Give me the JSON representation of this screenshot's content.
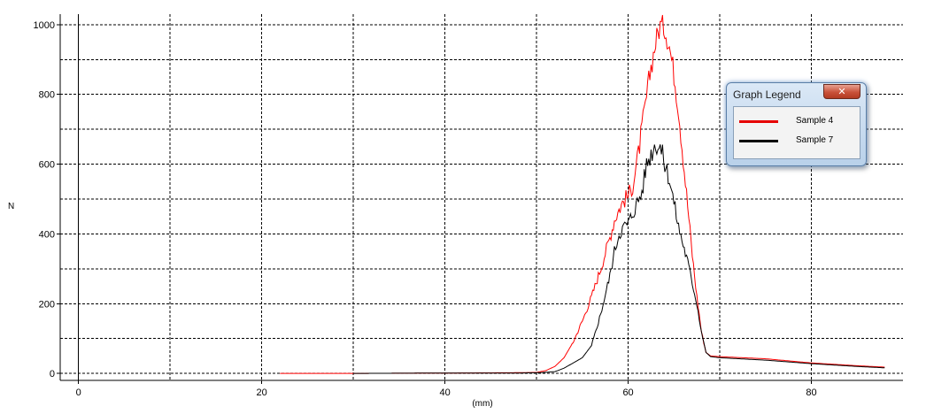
{
  "chart_data": {
    "type": "line",
    "title": "",
    "xlabel": "(mm)",
    "ylabel": "N",
    "xlim": [
      -2,
      90
    ],
    "ylim": [
      -20,
      1030
    ],
    "x_ticks": [
      0,
      20,
      40,
      60,
      80
    ],
    "y_ticks": [
      0,
      200,
      400,
      600,
      800,
      1000
    ],
    "grid": true,
    "legend_placement": "top-right",
    "series": [
      {
        "name": "Sample 4",
        "color": "#ff0000",
        "points": [
          [
            22,
            0
          ],
          [
            30,
            0
          ],
          [
            40,
            1
          ],
          [
            48,
            2
          ],
          [
            50,
            3
          ],
          [
            51,
            8
          ],
          [
            52,
            20
          ],
          [
            53,
            45
          ],
          [
            54,
            90
          ],
          [
            55,
            150
          ],
          [
            56,
            220
          ],
          [
            57,
            300
          ],
          [
            58,
            390
          ],
          [
            58.5,
            440
          ],
          [
            59,
            470
          ],
          [
            59.5,
            495
          ],
          [
            60,
            510
          ],
          [
            60.5,
            540
          ],
          [
            61,
            610
          ],
          [
            61.5,
            700
          ],
          [
            62,
            790
          ],
          [
            62.5,
            880
          ],
          [
            63,
            950
          ],
          [
            63.5,
            1000
          ],
          [
            64,
            990
          ],
          [
            64.5,
            940
          ],
          [
            65,
            860
          ],
          [
            65.5,
            760
          ],
          [
            66,
            620
          ],
          [
            66.5,
            480
          ],
          [
            67,
            340
          ],
          [
            67.5,
            220
          ],
          [
            68,
            120
          ],
          [
            68.5,
            60
          ],
          [
            69,
            50
          ],
          [
            70,
            48
          ],
          [
            75,
            42
          ],
          [
            80,
            30
          ],
          [
            85,
            22
          ],
          [
            88,
            18
          ]
        ]
      },
      {
        "name": "Sample 7",
        "color": "#000000",
        "points": [
          [
            30,
            0
          ],
          [
            40,
            1
          ],
          [
            48,
            1
          ],
          [
            50,
            2
          ],
          [
            51,
            3
          ],
          [
            52,
            5
          ],
          [
            53,
            15
          ],
          [
            54,
            30
          ],
          [
            55,
            45
          ],
          [
            56,
            80
          ],
          [
            57,
            170
          ],
          [
            58,
            280
          ],
          [
            58.5,
            350
          ],
          [
            59,
            400
          ],
          [
            59.5,
            420
          ],
          [
            60,
            430
          ],
          [
            60.5,
            460
          ],
          [
            61,
            490
          ],
          [
            61.5,
            520
          ],
          [
            62,
            600
          ],
          [
            62.5,
            630
          ],
          [
            63,
            660
          ],
          [
            63.5,
            650
          ],
          [
            64,
            600
          ],
          [
            64.5,
            560
          ],
          [
            65,
            490
          ],
          [
            65.5,
            420
          ],
          [
            66,
            370
          ],
          [
            66.5,
            320
          ],
          [
            67,
            260
          ],
          [
            67.5,
            200
          ],
          [
            68,
            120
          ],
          [
            68.5,
            60
          ],
          [
            69,
            48
          ],
          [
            70,
            45
          ],
          [
            75,
            38
          ],
          [
            80,
            28
          ],
          [
            85,
            20
          ],
          [
            88,
            16
          ]
        ]
      }
    ]
  },
  "legend": {
    "title": "Graph Legend",
    "close_glyph": "✕"
  }
}
